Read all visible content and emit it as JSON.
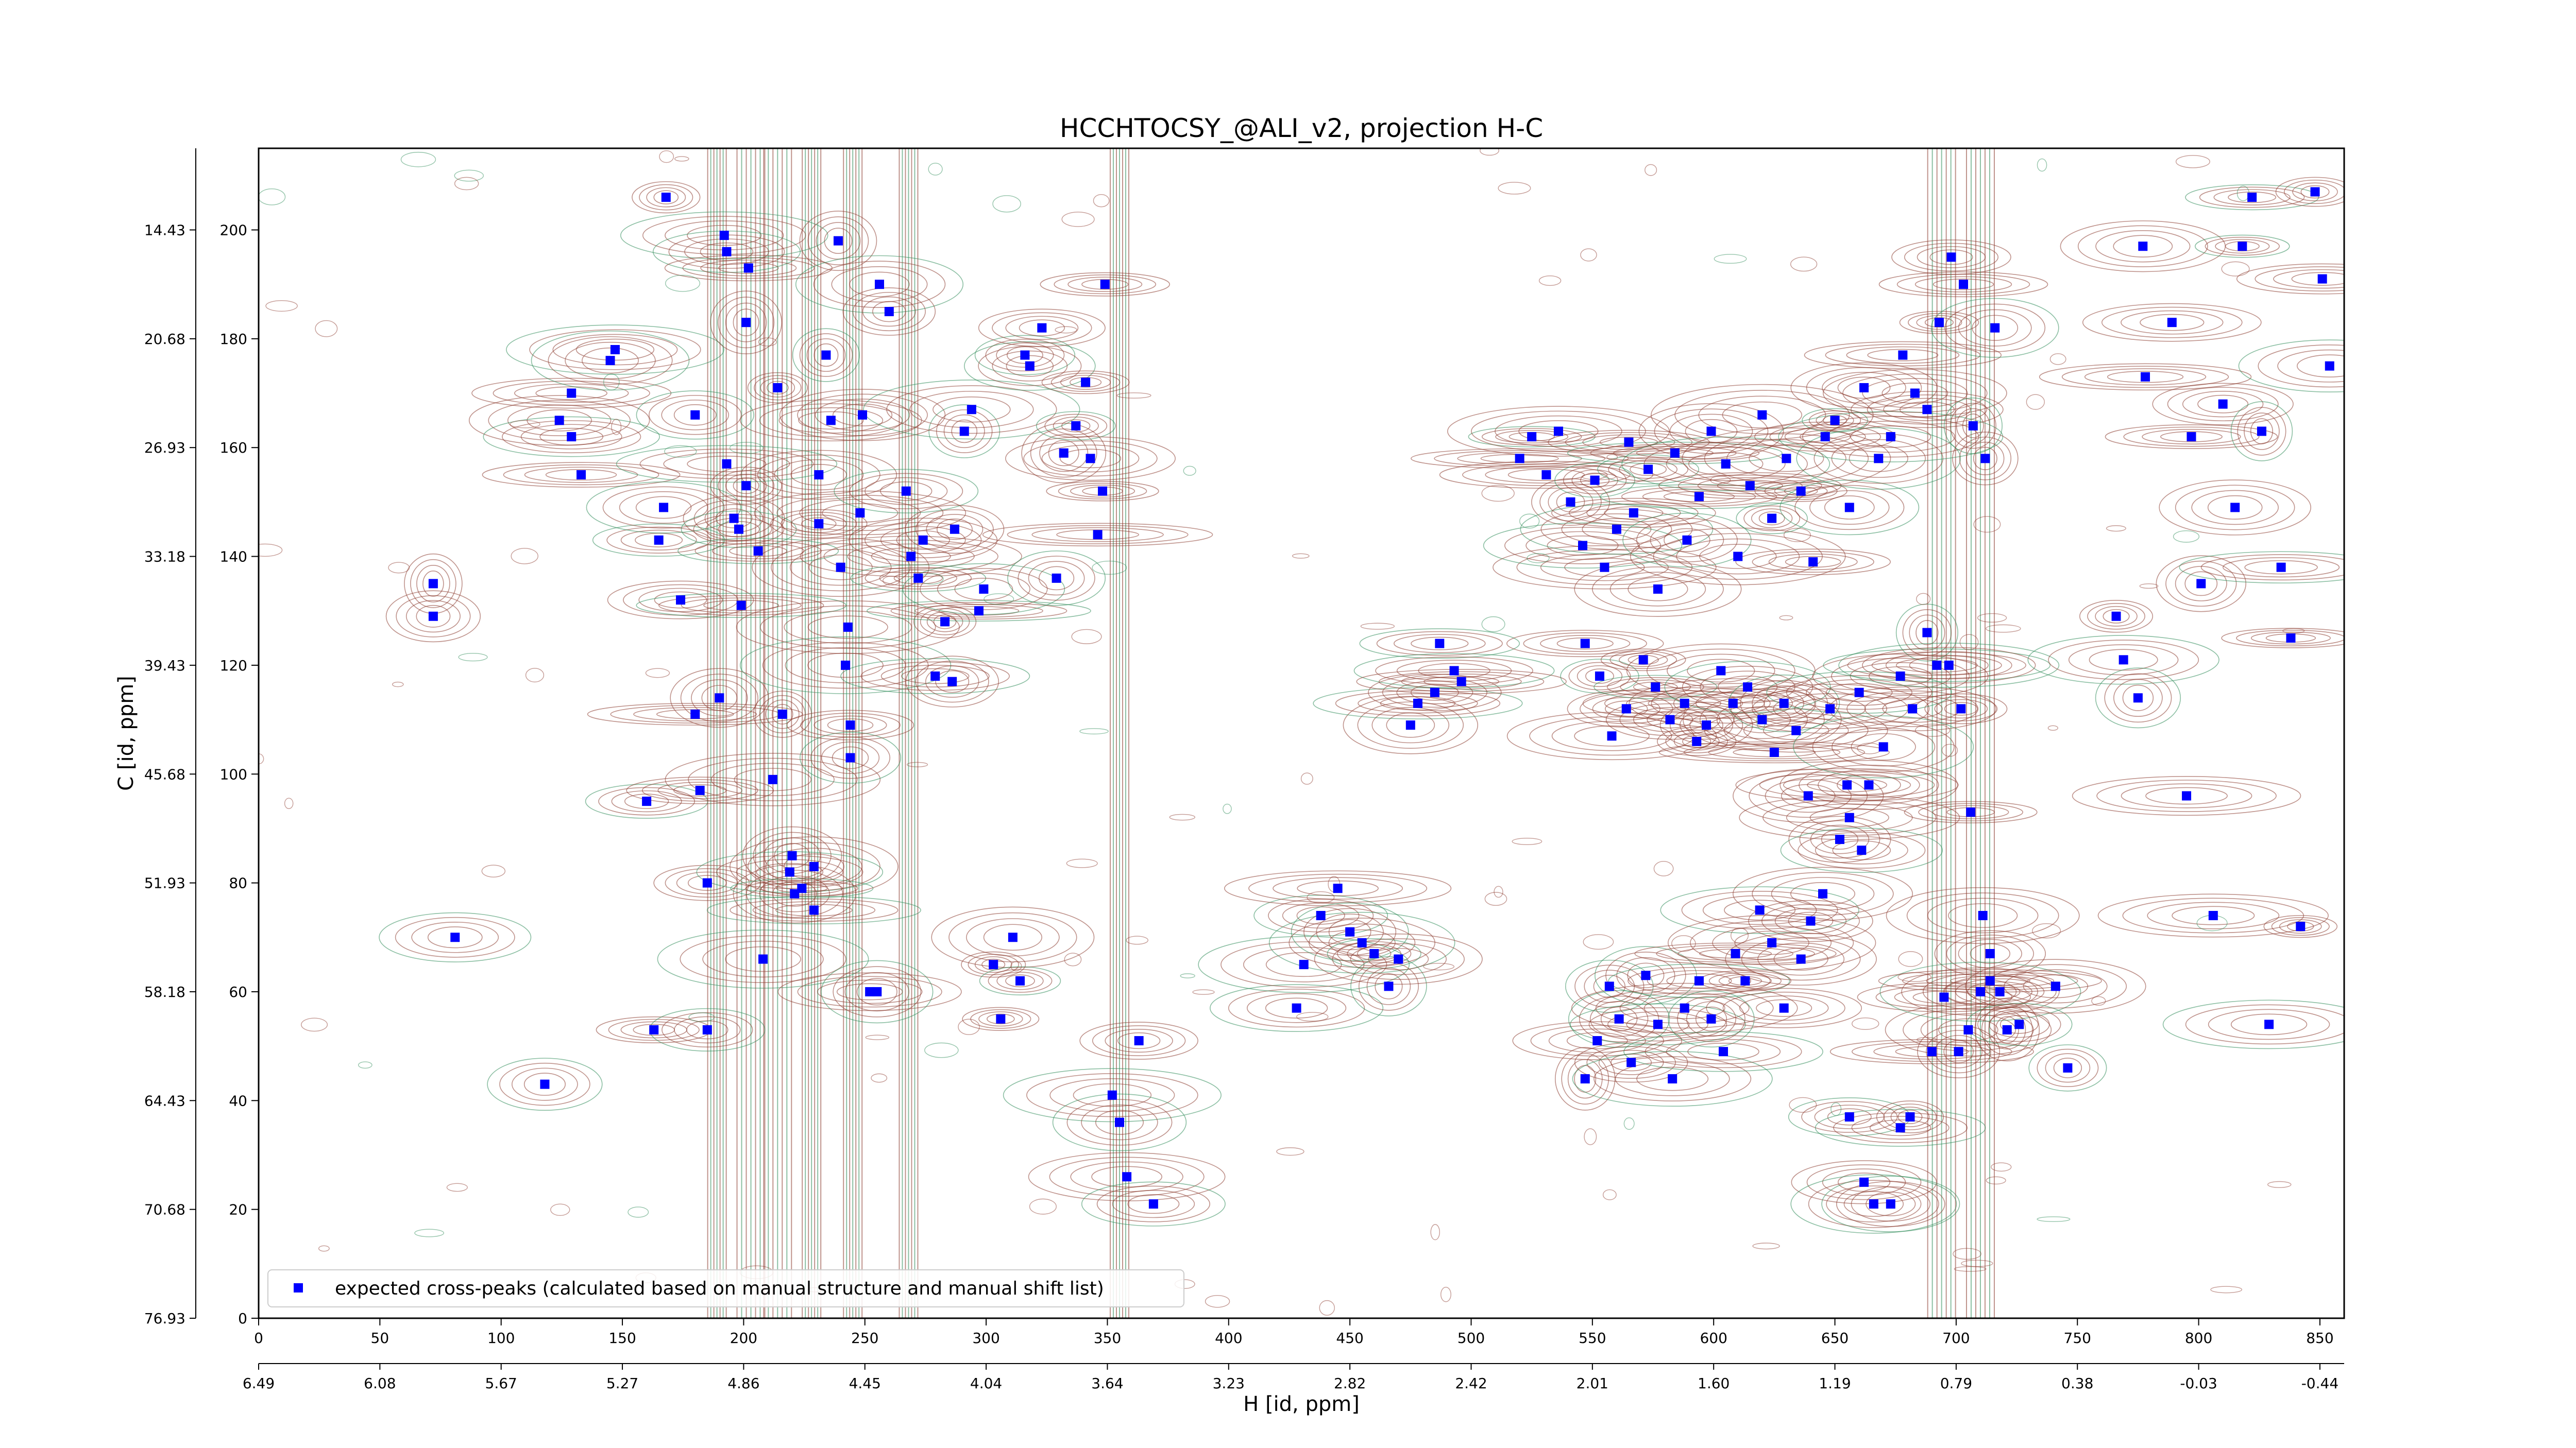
{
  "chart_data": {
    "type": "scatter",
    "title": "HCCHTOCSY_@ALI_v2, projection H-C",
    "xlabel": "H [id, ppm]",
    "ylabel": "C [id, ppm]",
    "xlim": [
      0,
      860
    ],
    "ylim": [
      0,
      215
    ],
    "x_ticks": [
      0,
      50,
      100,
      150,
      200,
      250,
      300,
      350,
      400,
      450,
      500,
      550,
      600,
      650,
      700,
      750,
      800,
      850
    ],
    "y_ticks": [
      0,
      20,
      40,
      60,
      80,
      100,
      120,
      140,
      160,
      180,
      200
    ],
    "secondary_x_ticks": [
      {
        "pos": 0,
        "label": "6.49"
      },
      {
        "pos": 50,
        "label": "6.08"
      },
      {
        "pos": 100,
        "label": "5.67"
      },
      {
        "pos": 150,
        "label": "5.27"
      },
      {
        "pos": 200,
        "label": "4.86"
      },
      {
        "pos": 250,
        "label": "4.45"
      },
      {
        "pos": 300,
        "label": "4.04"
      },
      {
        "pos": 350,
        "label": "3.64"
      },
      {
        "pos": 400,
        "label": "3.23"
      },
      {
        "pos": 450,
        "label": "2.82"
      },
      {
        "pos": 500,
        "label": "2.42"
      },
      {
        "pos": 550,
        "label": "2.01"
      },
      {
        "pos": 600,
        "label": "1.60"
      },
      {
        "pos": 650,
        "label": "1.19"
      },
      {
        "pos": 700,
        "label": "0.79"
      },
      {
        "pos": 750,
        "label": "0.38"
      },
      {
        "pos": 800,
        "label": "-0.03"
      },
      {
        "pos": 850,
        "label": "-0.44"
      }
    ],
    "secondary_y_ticks": [
      {
        "pos": 0,
        "label": "76.93"
      },
      {
        "pos": 20,
        "label": "70.68"
      },
      {
        "pos": 40,
        "label": "64.43"
      },
      {
        "pos": 60,
        "label": "58.18"
      },
      {
        "pos": 80,
        "label": "51.93"
      },
      {
        "pos": 100,
        "label": "45.68"
      },
      {
        "pos": 120,
        "label": "39.43"
      },
      {
        "pos": 140,
        "label": "33.18"
      },
      {
        "pos": 160,
        "label": "26.93"
      },
      {
        "pos": 180,
        "label": "20.68"
      },
      {
        "pos": 200,
        "label": "14.43"
      }
    ],
    "legend": {
      "position": "lower-left",
      "entries": [
        "expected cross-peaks (calculated based on manual structure and manual shift list)"
      ]
    },
    "colors": {
      "peaks": "#0000ff",
      "contour_positive": "#8b3a2e",
      "contour_negative": "#2e8b57"
    },
    "grid": false,
    "series": [
      {
        "name": "expected cross-peaks (calculated based on manual structure and manual shift list)",
        "points": [
          [
            72,
            135
          ],
          [
            72,
            129
          ],
          [
            118,
            43
          ],
          [
            81,
            70
          ],
          [
            129,
            170
          ],
          [
            124,
            165
          ],
          [
            129,
            162
          ],
          [
            133,
            155
          ],
          [
            147,
            178
          ],
          [
            145,
            176
          ],
          [
            160,
            95
          ],
          [
            163,
            53
          ],
          [
            165,
            143
          ],
          [
            167,
            149
          ],
          [
            168,
            206
          ],
          [
            174,
            132
          ],
          [
            180,
            111
          ],
          [
            180,
            166
          ],
          [
            182,
            97
          ],
          [
            185,
            80
          ],
          [
            185,
            53
          ],
          [
            190,
            114
          ],
          [
            192,
            199
          ],
          [
            193,
            196
          ],
          [
            193,
            157
          ],
          [
            196,
            147
          ],
          [
            198,
            145
          ],
          [
            199,
            131
          ],
          [
            201,
            153
          ],
          [
            201,
            183
          ],
          [
            202,
            193
          ],
          [
            206,
            141
          ],
          [
            208,
            66
          ],
          [
            212,
            99
          ],
          [
            214,
            171
          ],
          [
            216,
            111
          ],
          [
            219,
            82
          ],
          [
            220,
            85
          ],
          [
            221,
            78
          ],
          [
            224,
            79
          ],
          [
            229,
            83
          ],
          [
            229,
            75
          ],
          [
            231,
            155
          ],
          [
            231,
            146
          ],
          [
            234,
            177
          ],
          [
            236,
            165
          ],
          [
            239,
            198
          ],
          [
            240,
            138
          ],
          [
            242,
            120
          ],
          [
            243,
            127
          ],
          [
            244,
            103
          ],
          [
            244,
            109
          ],
          [
            248,
            148
          ],
          [
            249,
            166
          ],
          [
            252,
            60
          ],
          [
            255,
            60
          ],
          [
            256,
            190
          ],
          [
            260,
            185
          ],
          [
            267,
            152
          ],
          [
            269,
            140
          ],
          [
            272,
            136
          ],
          [
            274,
            143
          ],
          [
            279,
            118
          ],
          [
            283,
            128
          ],
          [
            286,
            117
          ],
          [
            287,
            145
          ],
          [
            291,
            163
          ],
          [
            294,
            167
          ],
          [
            297,
            130
          ],
          [
            299,
            134
          ],
          [
            303,
            65
          ],
          [
            306,
            55
          ],
          [
            311,
            70
          ],
          [
            314,
            62
          ],
          [
            316,
            177
          ],
          [
            318,
            175
          ],
          [
            323,
            182
          ],
          [
            329,
            136
          ],
          [
            332,
            159
          ],
          [
            337,
            164
          ],
          [
            341,
            172
          ],
          [
            343,
            158
          ],
          [
            346,
            144
          ],
          [
            348,
            152
          ],
          [
            349,
            190
          ],
          [
            352,
            41
          ],
          [
            355,
            36
          ],
          [
            358,
            26
          ],
          [
            363,
            51
          ],
          [
            369,
            21
          ],
          [
            428,
            57
          ],
          [
            431,
            65
          ],
          [
            438,
            74
          ],
          [
            445,
            79
          ],
          [
            450,
            71
          ],
          [
            455,
            69
          ],
          [
            460,
            67
          ],
          [
            466,
            61
          ],
          [
            470,
            66
          ],
          [
            475,
            109
          ],
          [
            478,
            113
          ],
          [
            485,
            115
          ],
          [
            487,
            124
          ],
          [
            493,
            119
          ],
          [
            496,
            117
          ],
          [
            520,
            158
          ],
          [
            525,
            162
          ],
          [
            531,
            155
          ],
          [
            536,
            163
          ],
          [
            541,
            150
          ],
          [
            546,
            142
          ],
          [
            551,
            154
          ],
          [
            555,
            138
          ],
          [
            560,
            145
          ],
          [
            565,
            161
          ],
          [
            567,
            148
          ],
          [
            573,
            156
          ],
          [
            577,
            134
          ],
          [
            584,
            159
          ],
          [
            589,
            143
          ],
          [
            594,
            151
          ],
          [
            599,
            163
          ],
          [
            605,
            157
          ],
          [
            610,
            140
          ],
          [
            615,
            153
          ],
          [
            620,
            166
          ],
          [
            624,
            147
          ],
          [
            630,
            158
          ],
          [
            636,
            152
          ],
          [
            641,
            139
          ],
          [
            646,
            162
          ],
          [
            650,
            165
          ],
          [
            656,
            149
          ],
          [
            662,
            171
          ],
          [
            668,
            158
          ],
          [
            673,
            162
          ],
          [
            678,
            177
          ],
          [
            683,
            170
          ],
          [
            688,
            167
          ],
          [
            693,
            183
          ],
          [
            698,
            195
          ],
          [
            703,
            190
          ],
          [
            707,
            164
          ],
          [
            712,
            158
          ],
          [
            716,
            182
          ],
          [
            547,
            44
          ],
          [
            552,
            51
          ],
          [
            557,
            61
          ],
          [
            561,
            55
          ],
          [
            566,
            47
          ],
          [
            572,
            63
          ],
          [
            577,
            54
          ],
          [
            583,
            44
          ],
          [
            588,
            57
          ],
          [
            594,
            62
          ],
          [
            599,
            55
          ],
          [
            604,
            49
          ],
          [
            609,
            67
          ],
          [
            613,
            62
          ],
          [
            619,
            75
          ],
          [
            624,
            69
          ],
          [
            629,
            57
          ],
          [
            636,
            66
          ],
          [
            640,
            73
          ],
          [
            645,
            78
          ],
          [
            652,
            88
          ],
          [
            656,
            92
          ],
          [
            661,
            86
          ],
          [
            547,
            124
          ],
          [
            553,
            118
          ],
          [
            558,
            107
          ],
          [
            564,
            112
          ],
          [
            571,
            121
          ],
          [
            576,
            116
          ],
          [
            582,
            110
          ],
          [
            588,
            113
          ],
          [
            593,
            106
          ],
          [
            597,
            109
          ],
          [
            603,
            119
          ],
          [
            608,
            113
          ],
          [
            614,
            116
          ],
          [
            620,
            110
          ],
          [
            625,
            104
          ],
          [
            629,
            113
          ],
          [
            634,
            108
          ],
          [
            639,
            96
          ],
          [
            648,
            112
          ],
          [
            655,
            98
          ],
          [
            660,
            115
          ],
          [
            664,
            98
          ],
          [
            670,
            105
          ],
          [
            677,
            118
          ],
          [
            682,
            112
          ],
          [
            688,
            126
          ],
          [
            692,
            120
          ],
          [
            697,
            120
          ],
          [
            702,
            112
          ],
          [
            706,
            93
          ],
          [
            711,
            74
          ],
          [
            714,
            67
          ],
          [
            718,
            60
          ],
          [
            656,
            37
          ],
          [
            662,
            25
          ],
          [
            666,
            21
          ],
          [
            673,
            21
          ],
          [
            677,
            35
          ],
          [
            681,
            37
          ],
          [
            690,
            49
          ],
          [
            695,
            59
          ],
          [
            701,
            49
          ],
          [
            705,
            53
          ],
          [
            710,
            60
          ],
          [
            714,
            62
          ],
          [
            721,
            53
          ],
          [
            726,
            54
          ],
          [
            741,
            61
          ],
          [
            746,
            46
          ],
          [
            766,
            129
          ],
          [
            769,
            121
          ],
          [
            775,
            114
          ],
          [
            777,
            197
          ],
          [
            778,
            173
          ],
          [
            789,
            183
          ],
          [
            795,
            96
          ],
          [
            797,
            162
          ],
          [
            801,
            135
          ],
          [
            806,
            74
          ],
          [
            810,
            168
          ],
          [
            815,
            149
          ],
          [
            818,
            197
          ],
          [
            822,
            206
          ],
          [
            826,
            163
          ],
          [
            829,
            54
          ],
          [
            834,
            138
          ],
          [
            838,
            125
          ],
          [
            842,
            72
          ],
          [
            848,
            207
          ],
          [
            851,
            191
          ],
          [
            854,
            175
          ]
        ]
      }
    ]
  }
}
